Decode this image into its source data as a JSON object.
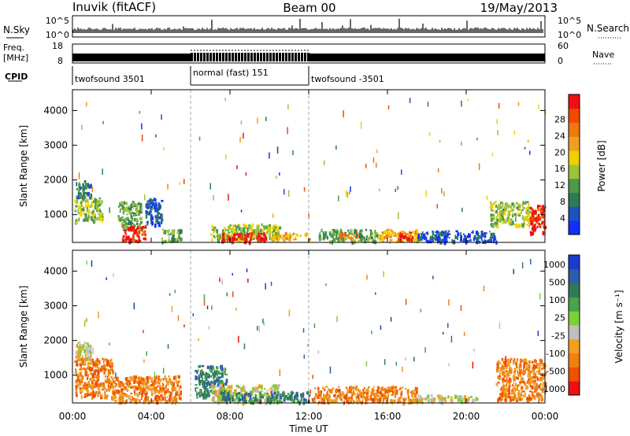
{
  "header": {
    "station": "Inuvik (fitACF)",
    "beam": "Beam 00",
    "date": "19/May/2013"
  },
  "strips": {
    "nsky_label": "N.Sky",
    "nsky_ticks": [
      "10^5",
      "10^0"
    ],
    "nsearch_label": "N.Search",
    "nsearch_ticks": [
      "10^5",
      "10^0"
    ],
    "freq_label_1": "Freq.",
    "freq_label_2": "[MHz]",
    "freq_ticks": [
      "18",
      "8"
    ],
    "nave_label": "Nave",
    "nave_ticks": [
      "60",
      "0"
    ],
    "cpid_label": "CPID",
    "cpid_segments": [
      {
        "label": "twofsound 3501",
        "start": 0,
        "end": 6
      },
      {
        "label": "normal (fast) 151",
        "start": 6,
        "end": 12
      },
      {
        "label": "twofsound -3501",
        "start": 12,
        "end": 24
      }
    ]
  },
  "chart_data": [
    {
      "type": "heatmap",
      "panel": "power",
      "ylabel": "Slant Range [km]",
      "y_ticks": [
        "1000",
        "2000",
        "3000",
        "4000"
      ],
      "ylim": [
        200,
        4600
      ],
      "xlim": [
        0,
        24
      ],
      "x_ticks": [
        "00:00",
        "04:00",
        "08:00",
        "12:00",
        "16:00",
        "20:00",
        "00:00"
      ],
      "colorbar": {
        "label": "Power [dB]",
        "ticks": [
          "4",
          "8",
          "12",
          "16",
          "20",
          "24",
          "28"
        ],
        "colors": [
          "#1030ff",
          "#2050c0",
          "#2f7a55",
          "#4a9a4a",
          "#9ec23b",
          "#f0d000",
          "#f0a020",
          "#f07810",
          "#f04a00",
          "#ee1010"
        ]
      },
      "regions": [
        {
          "x0": 0.1,
          "x1": 0.9,
          "y0": 1500,
          "y1": 2000,
          "level": 2
        },
        {
          "x0": 0.1,
          "x1": 1.5,
          "y0": 800,
          "y1": 1500,
          "level": 4
        },
        {
          "x0": 2.3,
          "x1": 3.5,
          "y0": 600,
          "y1": 1400,
          "level": 3
        },
        {
          "x0": 2.5,
          "x1": 3.7,
          "y0": 250,
          "y1": 700,
          "level": 9
        },
        {
          "x0": 3.7,
          "x1": 4.5,
          "y0": 700,
          "y1": 1500,
          "level": 1
        },
        {
          "x0": 4.5,
          "x1": 5.5,
          "y0": 250,
          "y1": 600,
          "level": 3
        },
        {
          "x0": 7.0,
          "x1": 10.5,
          "y0": 300,
          "y1": 750,
          "level": 4
        },
        {
          "x0": 7.5,
          "x1": 9.8,
          "y0": 250,
          "y1": 500,
          "level": 9
        },
        {
          "x0": 10.0,
          "x1": 12.0,
          "y0": 300,
          "y1": 500,
          "level": 6
        },
        {
          "x0": 12.5,
          "x1": 15.5,
          "y0": 250,
          "y1": 600,
          "level": 3
        },
        {
          "x0": 13.5,
          "x1": 14.5,
          "y0": 350,
          "y1": 500,
          "level": 7
        },
        {
          "x0": 15.5,
          "x1": 17.5,
          "y0": 250,
          "y1": 600,
          "level": 6
        },
        {
          "x0": 16.5,
          "x1": 17.3,
          "y0": 300,
          "y1": 500,
          "level": 9
        },
        {
          "x0": 17.5,
          "x1": 21.5,
          "y0": 250,
          "y1": 550,
          "level": 1
        },
        {
          "x0": 21.2,
          "x1": 23.2,
          "y0": 700,
          "y1": 1400,
          "level": 4
        },
        {
          "x0": 23.2,
          "x1": 24.0,
          "y0": 500,
          "y1": 1300,
          "level": 9
        }
      ]
    },
    {
      "type": "heatmap",
      "panel": "velocity",
      "ylabel": "Slant Range [km]",
      "y_ticks": [
        "1000",
        "2000",
        "3000",
        "4000"
      ],
      "ylim": [
        200,
        4600
      ],
      "xlim": [
        0,
        24
      ],
      "x_ticks": [
        "00:00",
        "04:00",
        "08:00",
        "12:00",
        "16:00",
        "20:00",
        "00:00"
      ],
      "xlabel": "Time UT",
      "colorbar": {
        "label": "Velocity [m s⁻¹]",
        "ticks": [
          "1000",
          "500",
          "100",
          "25",
          "-25",
          "-100",
          "-500",
          "-1000"
        ],
        "colors": [
          "#1a3cc8",
          "#2f5ea8",
          "#2f7a55",
          "#4aa34a",
          "#7ad03a",
          "#bfbfbf",
          "#f0a020",
          "#f08010",
          "#f05000",
          "#ee1010"
        ]
      },
      "regions": [
        {
          "x0": 0.1,
          "x1": 0.9,
          "y0": 1500,
          "y1": 2000,
          "level": 5
        },
        {
          "x0": 0.1,
          "x1": 2.0,
          "y0": 400,
          "y1": 1500,
          "level": 7
        },
        {
          "x0": 2.0,
          "x1": 5.5,
          "y0": 250,
          "y1": 1000,
          "level": 7
        },
        {
          "x0": 6.2,
          "x1": 7.8,
          "y0": 400,
          "y1": 1300,
          "level": 2
        },
        {
          "x0": 7.0,
          "x1": 10.5,
          "y0": 250,
          "y1": 750,
          "level": 5
        },
        {
          "x0": 7.5,
          "x1": 12.0,
          "y0": 250,
          "y1": 550,
          "level": 2
        },
        {
          "x0": 12.0,
          "x1": 17.5,
          "y0": 250,
          "y1": 700,
          "level": 7
        },
        {
          "x0": 17.5,
          "x1": 20.5,
          "y0": 250,
          "y1": 450,
          "level": 5
        },
        {
          "x0": 21.5,
          "x1": 24.0,
          "y0": 300,
          "y1": 1500,
          "level": 7
        }
      ]
    }
  ]
}
